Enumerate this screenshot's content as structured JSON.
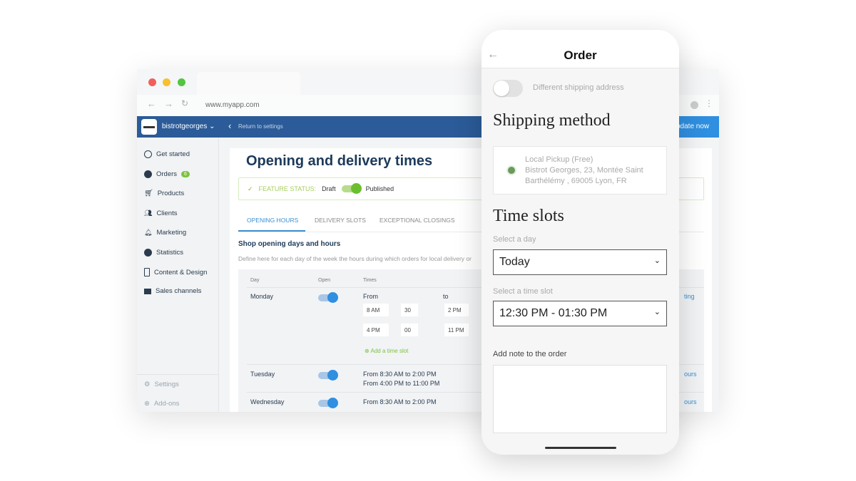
{
  "browser": {
    "url": "www.myapp.com",
    "account": "bistrotgeorges",
    "return_link": "Return to settings",
    "update_button": "pdate now"
  },
  "sidebar": {
    "items": [
      {
        "label": "Get started"
      },
      {
        "label": "Orders",
        "badge": "6"
      },
      {
        "label": "Products"
      },
      {
        "label": "Clients"
      },
      {
        "label": "Marketing"
      },
      {
        "label": "Statistics"
      },
      {
        "label": "Content & Design"
      },
      {
        "label": "Sales channels"
      }
    ],
    "bottom": [
      {
        "label": "Settings"
      },
      {
        "label": "Add-ons"
      }
    ]
  },
  "main": {
    "title": "Opening and delivery times",
    "feature_status_label": "FEATURE STATUS:",
    "draft": "Draft",
    "published": "Published",
    "tabs": [
      {
        "label": "OPENING HOURS"
      },
      {
        "label": "DELIVERY SLOTS"
      },
      {
        "label": "EXCEPTIONAL CLOSINGS"
      }
    ],
    "section_title": "Shop opening days and hours",
    "section_desc": "Define here for each day of the week the hours during which orders for local delivery or",
    "table": {
      "headers": [
        "Day",
        "Open",
        "Times"
      ],
      "from": "From",
      "to": "to",
      "monday": {
        "day": "Monday",
        "slots": [
          [
            "8 AM",
            "30",
            "2 PM"
          ],
          [
            "4 PM",
            "00",
            "11 PM"
          ]
        ],
        "add_slot": "Add a time slot",
        "edge_link": "ting"
      },
      "tuesday": {
        "day": "Tuesday",
        "times": [
          "From 8:30 AM to 2:00 PM",
          "From 4:00 PM to 11:00 PM"
        ],
        "edge_link": "ours"
      },
      "wednesday": {
        "day": "Wednesday",
        "times": [
          "From 8:30 AM to 2:00 PM"
        ],
        "edge_link": "ours"
      }
    }
  },
  "phone": {
    "title": "Order",
    "diff_address": "Different shipping address",
    "shipping_title": "Shipping method",
    "pickup": [
      "Local Pickup (Free)",
      "Bistrot Georges, 23, Montée Saint",
      "Barthélémy , 69005 Lyon, FR"
    ],
    "time_slots_title": "Time slots",
    "day_label": "Select a day",
    "day_value": "Today",
    "slot_label": "Select a time slot",
    "slot_value": "12:30 PM - 01:30 PM",
    "note_label": "Add note to the order"
  },
  "colors": {
    "brand_blue": "#2b5b98",
    "accent_blue": "#2f8fe0",
    "green": "#7dc242"
  }
}
